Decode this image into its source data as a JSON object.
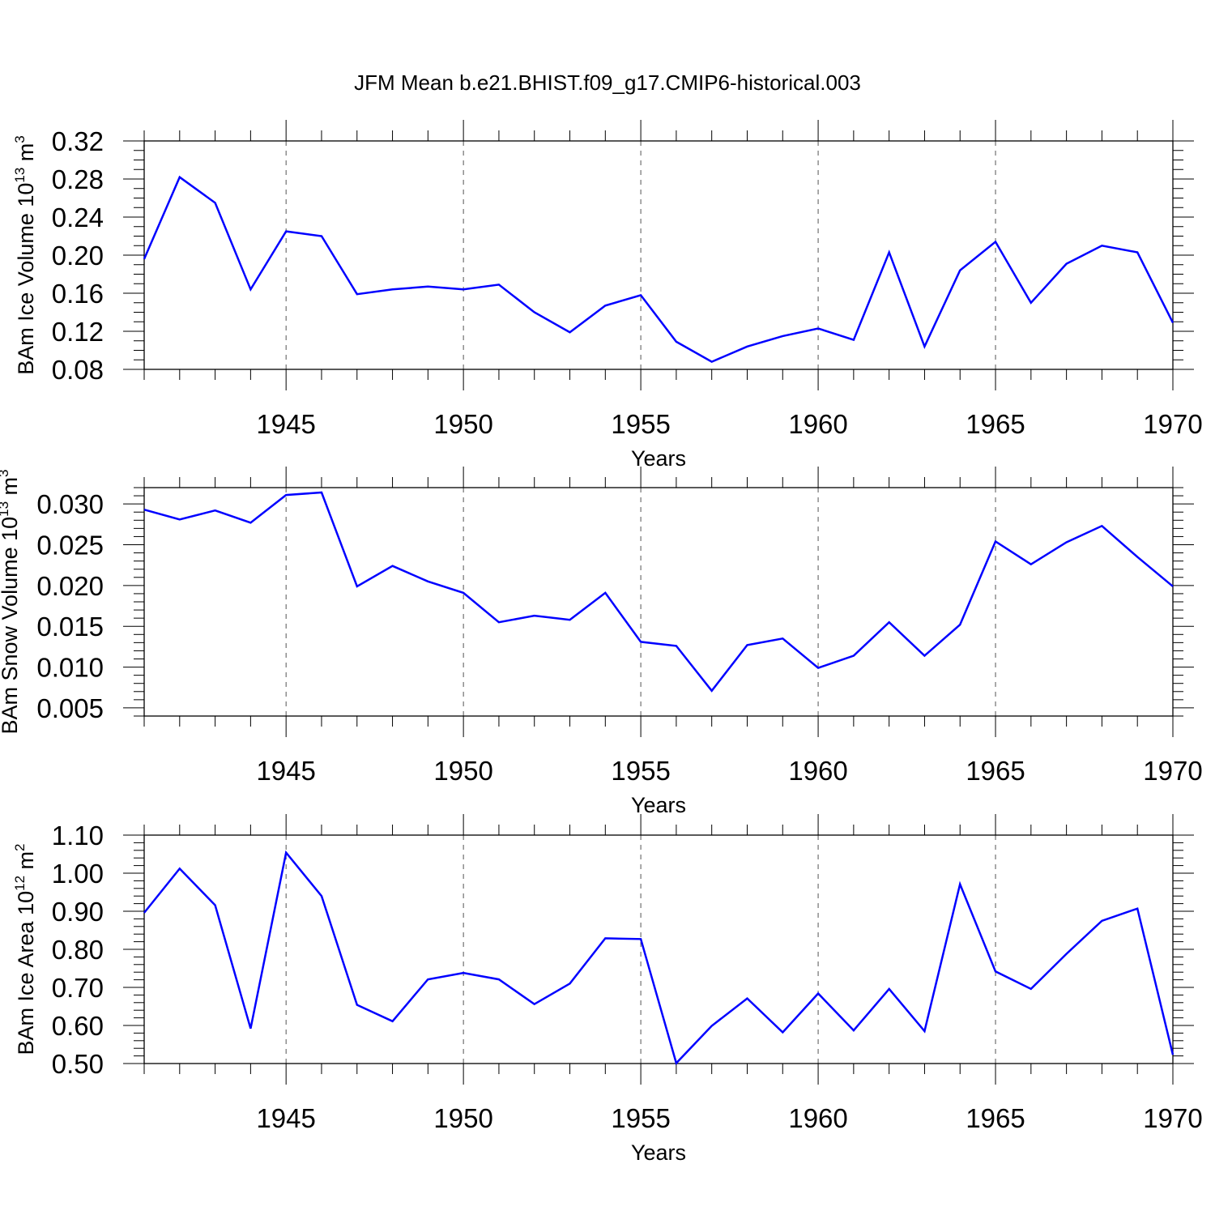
{
  "title": "JFM Mean b.e21.BHIST.f09_g17.CMIP6-historical.003",
  "line_color": "#0000ff",
  "chart_data": [
    {
      "type": "line",
      "ylabel_main": "BAm Ice Volume 10",
      "ylabel_exp": "13",
      "ylabel_unit": " m",
      "ylabel_unit_exp": "3",
      "xlabel": "Years",
      "xlim": [
        1941,
        1970
      ],
      "ylim": [
        0.08,
        0.32
      ],
      "x_ticks": [
        "1945",
        "1950",
        "1955",
        "1960",
        "1965",
        "1970"
      ],
      "y_ticks": [
        "0.08",
        "0.12",
        "0.16",
        "0.20",
        "0.24",
        "0.28",
        "0.32"
      ],
      "grid": "dashed vertical at labeled years",
      "x": [
        1941,
        1942,
        1943,
        1944,
        1945,
        1946,
        1947,
        1948,
        1949,
        1950,
        1951,
        1952,
        1953,
        1954,
        1955,
        1956,
        1957,
        1958,
        1959,
        1960,
        1961,
        1962,
        1963,
        1964,
        1965,
        1966,
        1967,
        1968,
        1969,
        1970
      ],
      "values": [
        0.196,
        0.282,
        0.255,
        0.164,
        0.225,
        0.22,
        0.159,
        0.164,
        0.167,
        0.164,
        0.169,
        0.14,
        0.119,
        0.147,
        0.158,
        0.109,
        0.088,
        0.104,
        0.115,
        0.123,
        0.111,
        0.203,
        0.104,
        0.184,
        0.214,
        0.15,
        0.191,
        0.21,
        0.203,
        0.129
      ]
    },
    {
      "type": "line",
      "ylabel_main": "BAm Snow Volume 10",
      "ylabel_exp": "13",
      "ylabel_unit": " m",
      "ylabel_unit_exp": "3",
      "xlabel": "Years",
      "xlim": [
        1941,
        1970
      ],
      "ylim": [
        0.004,
        0.032
      ],
      "x_ticks": [
        "1945",
        "1950",
        "1955",
        "1960",
        "1965",
        "1970"
      ],
      "y_ticks": [
        "0.005",
        "0.010",
        "0.015",
        "0.020",
        "0.025",
        "0.030"
      ],
      "grid": "dashed vertical at labeled years",
      "x": [
        1941,
        1942,
        1943,
        1944,
        1945,
        1946,
        1947,
        1948,
        1949,
        1950,
        1951,
        1952,
        1953,
        1954,
        1955,
        1956,
        1957,
        1958,
        1959,
        1960,
        1961,
        1962,
        1963,
        1964,
        1965,
        1966,
        1967,
        1968,
        1969,
        1970
      ],
      "values": [
        0.0293,
        0.0281,
        0.0292,
        0.0277,
        0.0311,
        0.0314,
        0.0199,
        0.0224,
        0.0205,
        0.0191,
        0.0155,
        0.0163,
        0.0158,
        0.0191,
        0.0131,
        0.0126,
        0.0071,
        0.0127,
        0.0135,
        0.0099,
        0.0114,
        0.0155,
        0.0114,
        0.0152,
        0.0254,
        0.0226,
        0.0253,
        0.0273,
        0.0235,
        0.0199
      ]
    },
    {
      "type": "line",
      "ylabel_main": "BAm Ice Area 10",
      "ylabel_exp": "12",
      "ylabel_unit": " m",
      "ylabel_unit_exp": "2",
      "xlabel": "Years",
      "xlim": [
        1941,
        1970
      ],
      "ylim": [
        0.5,
        1.1
      ],
      "x_ticks": [
        "1945",
        "1950",
        "1955",
        "1960",
        "1965",
        "1970"
      ],
      "y_ticks": [
        "0.50",
        "0.60",
        "0.70",
        "0.80",
        "0.90",
        "1.00",
        "1.10"
      ],
      "grid": "dashed vertical at labeled years",
      "x": [
        1941,
        1942,
        1943,
        1944,
        1945,
        1946,
        1947,
        1948,
        1949,
        1950,
        1951,
        1952,
        1953,
        1954,
        1955,
        1956,
        1957,
        1958,
        1959,
        1960,
        1961,
        1962,
        1963,
        1964,
        1965,
        1966,
        1967,
        1968,
        1969,
        1970
      ],
      "values": [
        0.896,
        1.012,
        0.916,
        0.592,
        1.054,
        0.94,
        0.654,
        0.611,
        0.721,
        0.738,
        0.721,
        0.656,
        0.71,
        0.829,
        0.827,
        0.501,
        0.599,
        0.671,
        0.582,
        0.684,
        0.587,
        0.696,
        0.585,
        0.971,
        0.742,
        0.696,
        0.788,
        0.875,
        0.907,
        0.523
      ]
    }
  ]
}
